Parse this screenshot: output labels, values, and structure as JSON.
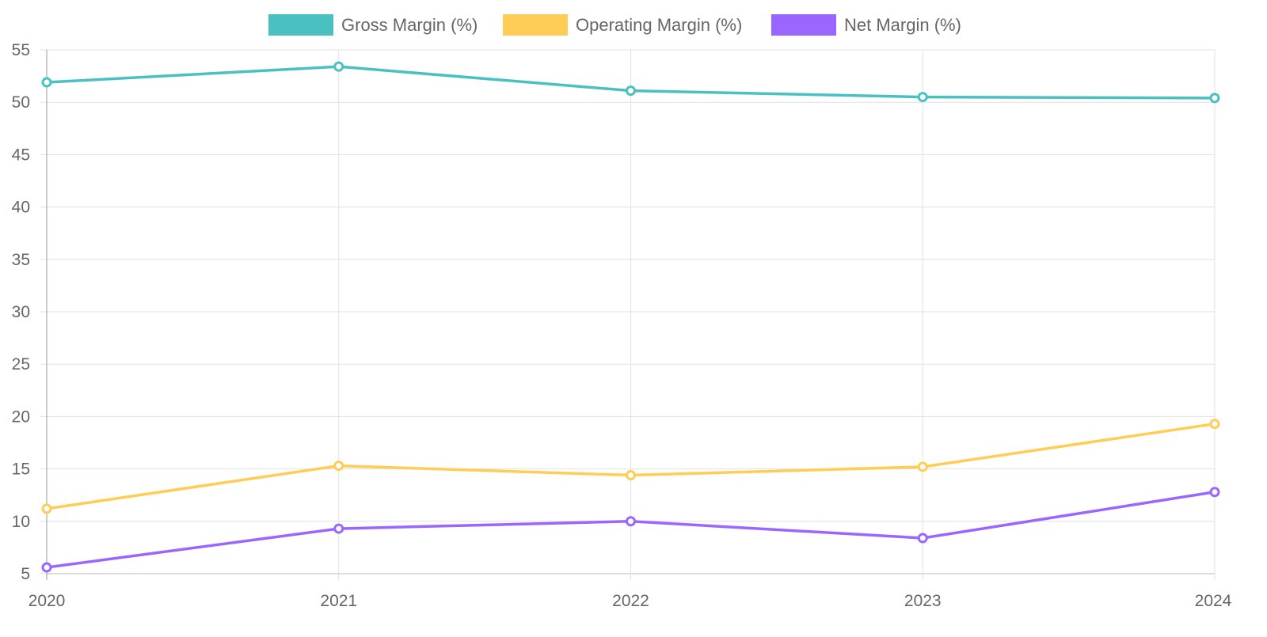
{
  "chart_data": {
    "type": "line",
    "title": "",
    "xlabel": "",
    "ylabel": "",
    "categories": [
      "2020",
      "2021",
      "2022",
      "2023",
      "2024"
    ],
    "ylim": [
      5,
      55
    ],
    "yticks": [
      5,
      10,
      15,
      20,
      25,
      30,
      35,
      40,
      45,
      50,
      55
    ],
    "grid": true,
    "legend_position": "top-center",
    "series": [
      {
        "name": "Gross Margin (%)",
        "color": "#4BC0C0",
        "values": [
          51.9,
          53.4,
          51.1,
          50.5,
          50.4
        ]
      },
      {
        "name": "Operating Margin (%)",
        "color": "#FFCD56",
        "values": [
          11.2,
          15.3,
          14.4,
          15.2,
          19.3
        ]
      },
      {
        "name": "Net Margin (%)",
        "color": "#9966FF",
        "values": [
          5.6,
          9.3,
          10.0,
          8.4,
          12.8
        ]
      }
    ]
  }
}
